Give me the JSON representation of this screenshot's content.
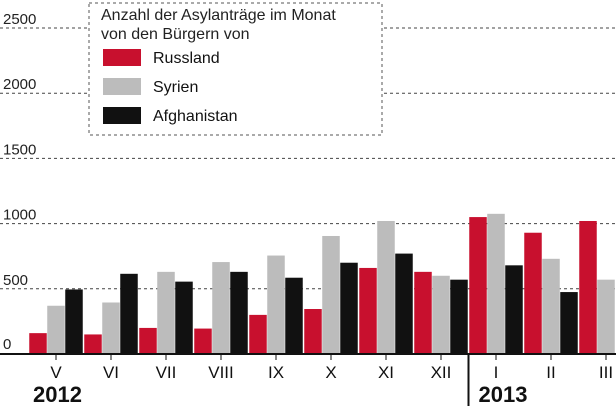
{
  "chart_data": {
    "type": "bar",
    "title": "Anzahl der Asylanträge im Monat",
    "subtitle": "von den Bürgern von",
    "categories": [
      "V",
      "VI",
      "VII",
      "VIII",
      "IX",
      "X",
      "XI",
      "XII",
      "I",
      "II",
      "III"
    ],
    "year_labels": [
      {
        "label": "2012",
        "start": "V",
        "end": "XII"
      },
      {
        "label": "2013",
        "start": "I",
        "end": "III"
      }
    ],
    "series": [
      {
        "name": "Russland",
        "color": "#c8102e",
        "values": [
          160,
          150,
          200,
          195,
          300,
          345,
          660,
          630,
          1050,
          930,
          1020
        ]
      },
      {
        "name": "Syrien",
        "color": "#bcbcbc",
        "values": [
          370,
          395,
          630,
          705,
          755,
          905,
          1020,
          600,
          1075,
          730,
          570
        ]
      },
      {
        "name": "Afghanistan",
        "color": "#111111",
        "values": [
          495,
          615,
          555,
          630,
          585,
          700,
          770,
          570,
          680,
          475,
          null
        ]
      }
    ],
    "ylim": [
      0,
      2500
    ],
    "yticks": [
      0,
      500,
      1000,
      1500,
      2000,
      2500
    ],
    "grid": true,
    "legend_position": "top-left"
  }
}
